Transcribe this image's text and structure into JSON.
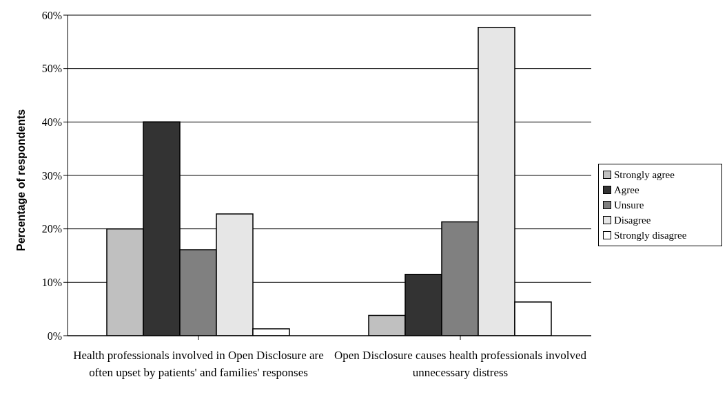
{
  "chart_data": {
    "type": "bar",
    "ylabel": "Percentage of respondents",
    "categories": [
      "Health professionals involved in Open Disclosure are often upset by patients' and families' responses",
      "Open Disclosure causes health professionals involved unnecessary distress"
    ],
    "series": [
      {
        "name": "Strongly agree",
        "color": "#c0c0c0",
        "values": [
          20,
          3.8
        ]
      },
      {
        "name": "Agree",
        "color": "#333333",
        "values": [
          40,
          11.5
        ]
      },
      {
        "name": "Unsure",
        "color": "#808080",
        "values": [
          16.1,
          21.3
        ]
      },
      {
        "name": "Disagree",
        "color": "#e6e6e6",
        "values": [
          22.8,
          57.7
        ]
      },
      {
        "name": "Strongly disagree",
        "color": "#ffffff",
        "values": [
          1.3,
          6.3
        ]
      }
    ],
    "ylim": [
      0,
      60
    ],
    "yticks": [
      {
        "value": 0,
        "label": "0%"
      },
      {
        "value": 10,
        "label": "10%"
      },
      {
        "value": 20,
        "label": "20%"
      },
      {
        "value": 30,
        "label": "30%"
      },
      {
        "value": 40,
        "label": "40%"
      },
      {
        "value": 50,
        "label": "50%"
      },
      {
        "value": 60,
        "label": "60%"
      }
    ],
    "grid": "y",
    "legend": "right"
  }
}
